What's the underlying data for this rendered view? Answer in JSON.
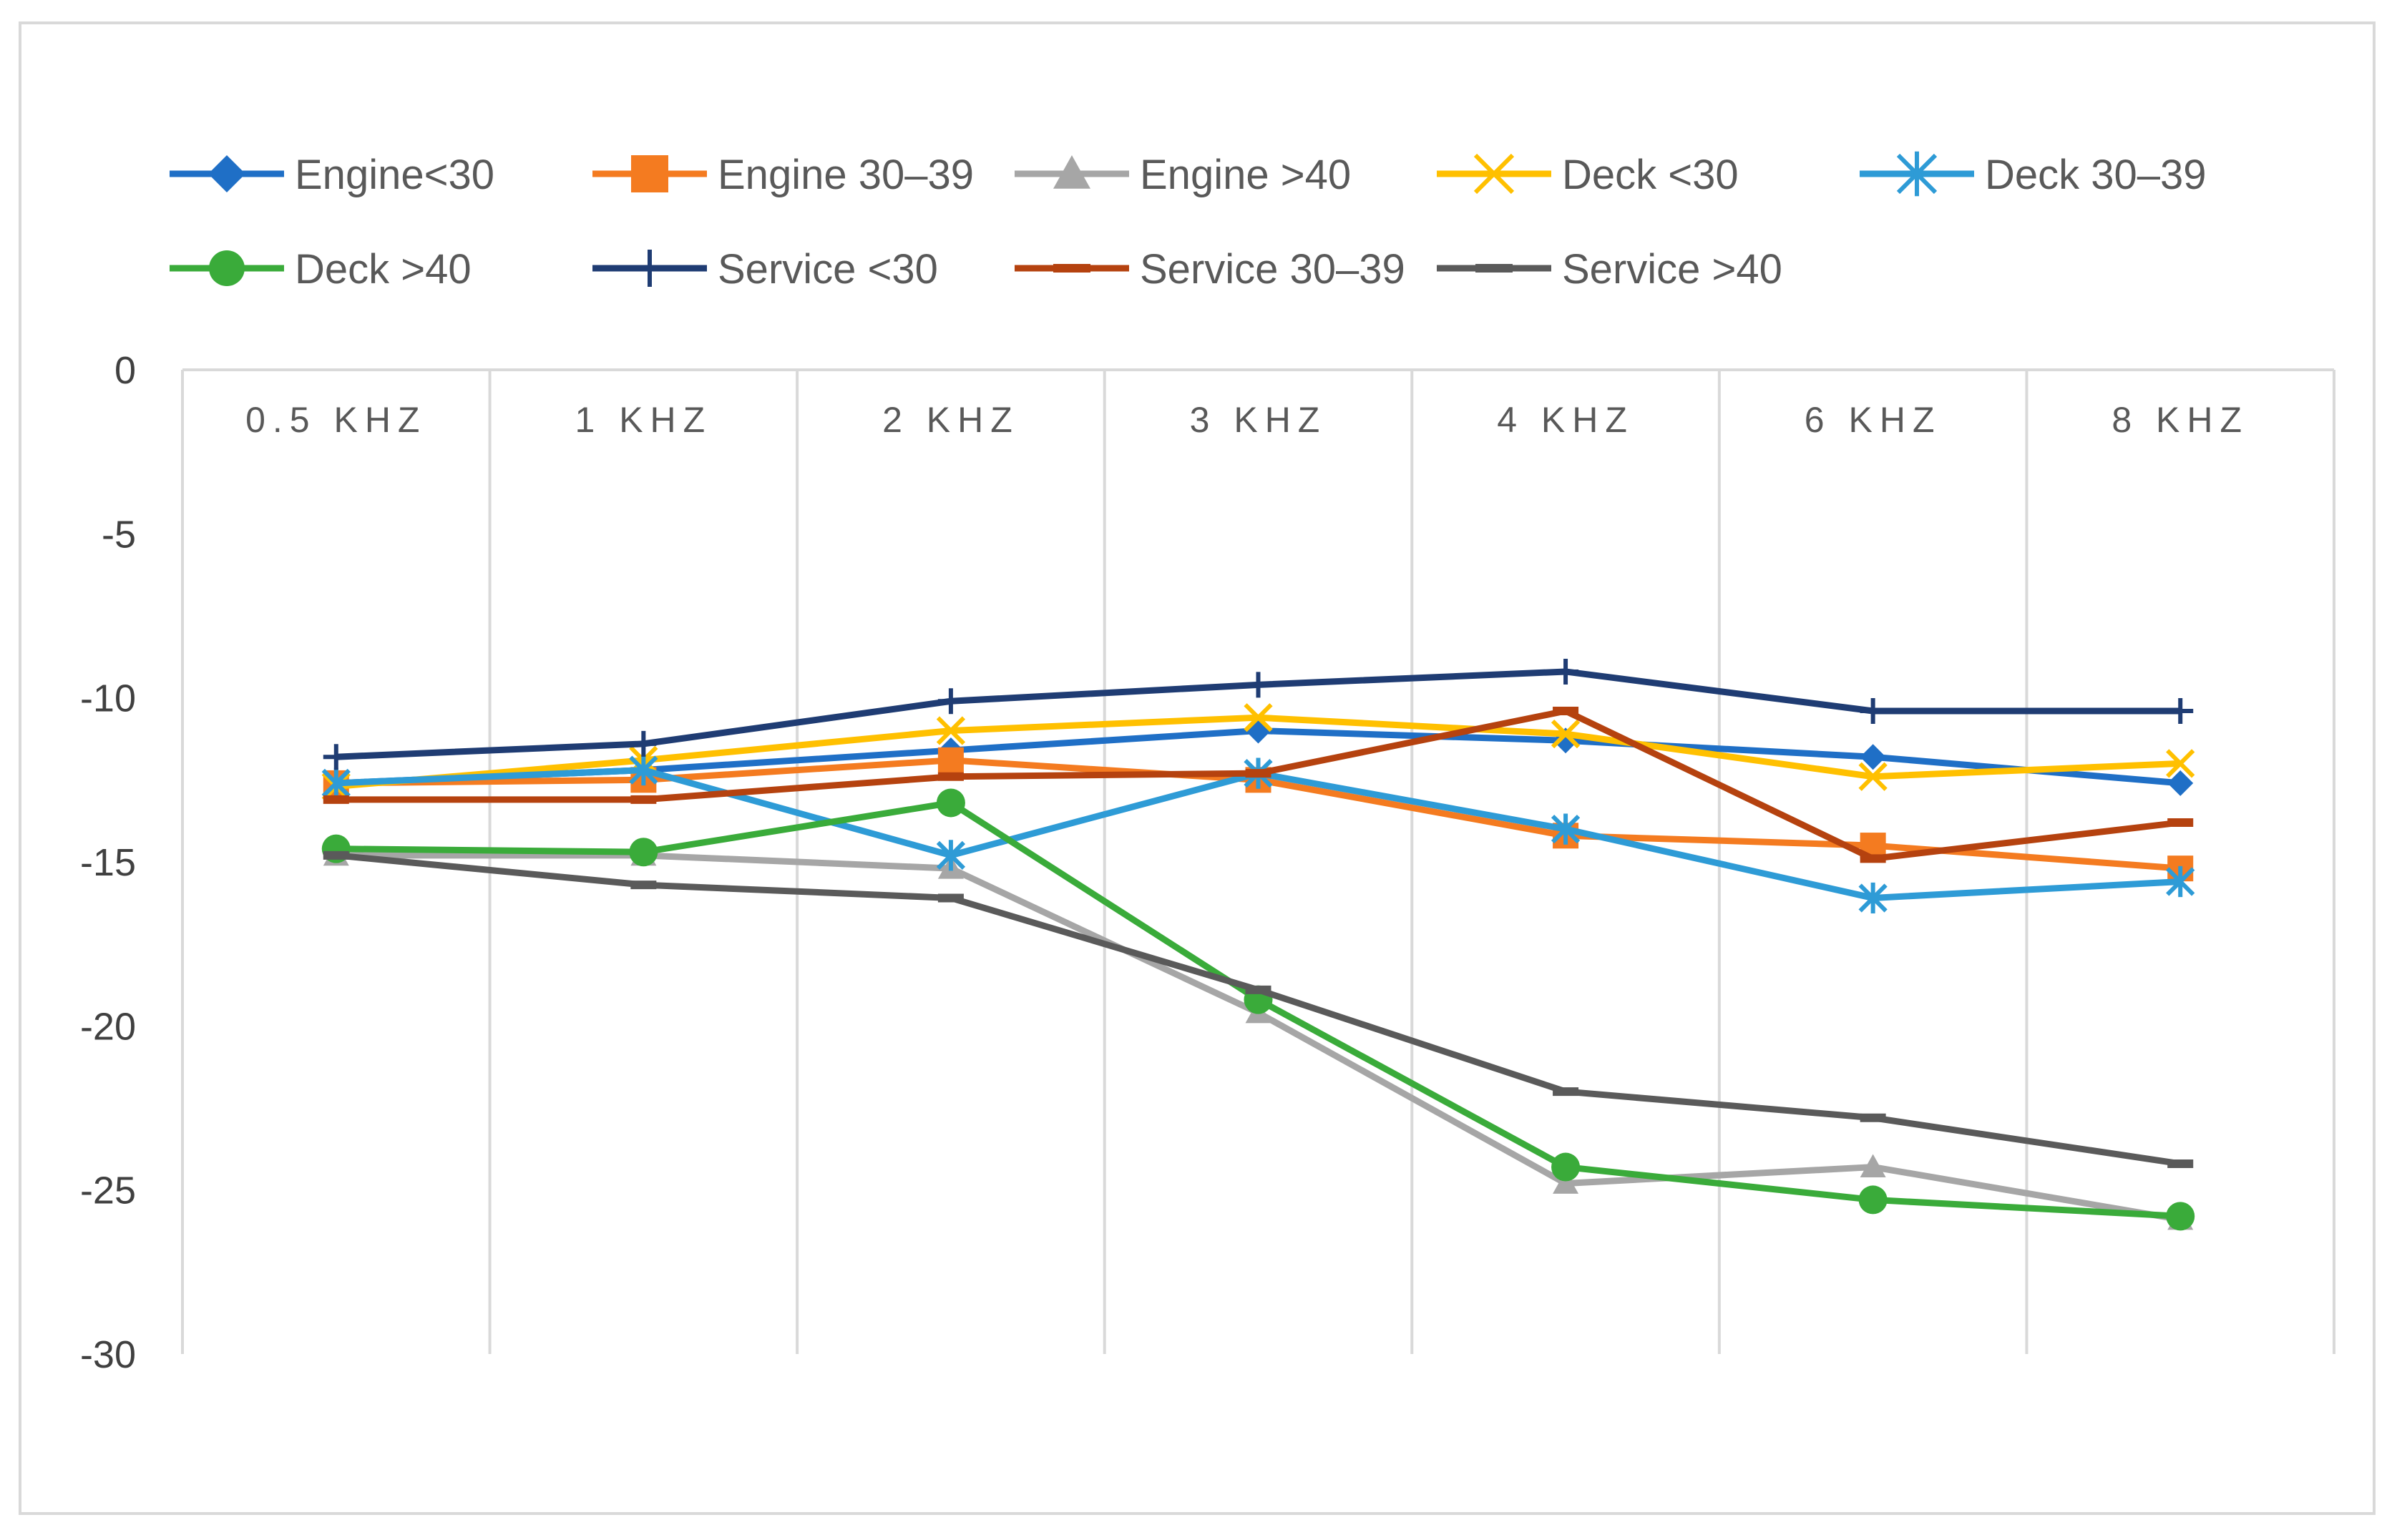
{
  "chart_data": {
    "type": "line",
    "title": "",
    "xlabel": "",
    "ylabel": "",
    "ylim": [
      -30,
      0
    ],
    "yticks": [
      0,
      -5,
      -10,
      -15,
      -20,
      -25,
      -30
    ],
    "ytick_labels": [
      "0",
      "-5",
      "-10",
      "-15",
      "-20",
      "-25",
      "-30"
    ],
    "categories": [
      "0.5 KHZ",
      "1 KHZ",
      "2 KHZ",
      "3 KHZ",
      "4 KHZ",
      "6 KHZ",
      "8 KHZ"
    ],
    "legend_position": "top",
    "grid": "vertical",
    "series": [
      {
        "name": "Engine<30",
        "color": "#1f6fc6",
        "marker": "diamond",
        "values": [
          -12.6,
          -12.2,
          -11.6,
          -11.0,
          -11.3,
          -11.8,
          -12.6
        ]
      },
      {
        "name": "Engine 30–39",
        "color": "#f47b20",
        "marker": "square",
        "values": [
          -12.6,
          -12.5,
          -11.9,
          -12.5,
          -14.2,
          -14.5,
          -15.2
        ]
      },
      {
        "name": "Engine >40",
        "color": "#a6a6a6",
        "marker": "triangle",
        "values": [
          -14.8,
          -14.8,
          -15.2,
          -19.6,
          -24.8,
          -24.3,
          -25.9
        ]
      },
      {
        "name": "Deck <30",
        "color": "#ffc000",
        "marker": "x",
        "values": [
          -12.7,
          -11.9,
          -11.0,
          -10.6,
          -11.1,
          -12.4,
          -12.0
        ]
      },
      {
        "name": "Deck 30–39",
        "color": "#2e9bd6",
        "marker": "star",
        "values": [
          -12.6,
          -12.2,
          -14.8,
          -12.3,
          -14.0,
          -16.1,
          -15.6
        ]
      },
      {
        "name": "Deck >40",
        "color": "#3aab3a",
        "marker": "circle",
        "values": [
          -14.6,
          -14.7,
          -13.2,
          -19.2,
          -24.3,
          -25.3,
          -25.8
        ]
      },
      {
        "name": "Service <30",
        "color": "#1f3c73",
        "marker": "plus",
        "values": [
          -11.8,
          -11.4,
          -10.1,
          -9.6,
          -9.2,
          -10.4,
          -10.4
        ]
      },
      {
        "name": "Service 30–39",
        "color": "#b5420f",
        "marker": "dash",
        "values": [
          -13.1,
          -13.1,
          -12.4,
          -12.3,
          -10.4,
          -14.9,
          -13.8
        ]
      },
      {
        "name": "Service >40",
        "color": "#5a5a5a",
        "marker": "dash",
        "values": [
          -14.8,
          -15.7,
          -16.1,
          -18.9,
          -22.0,
          -22.8,
          -24.2
        ]
      }
    ]
  }
}
